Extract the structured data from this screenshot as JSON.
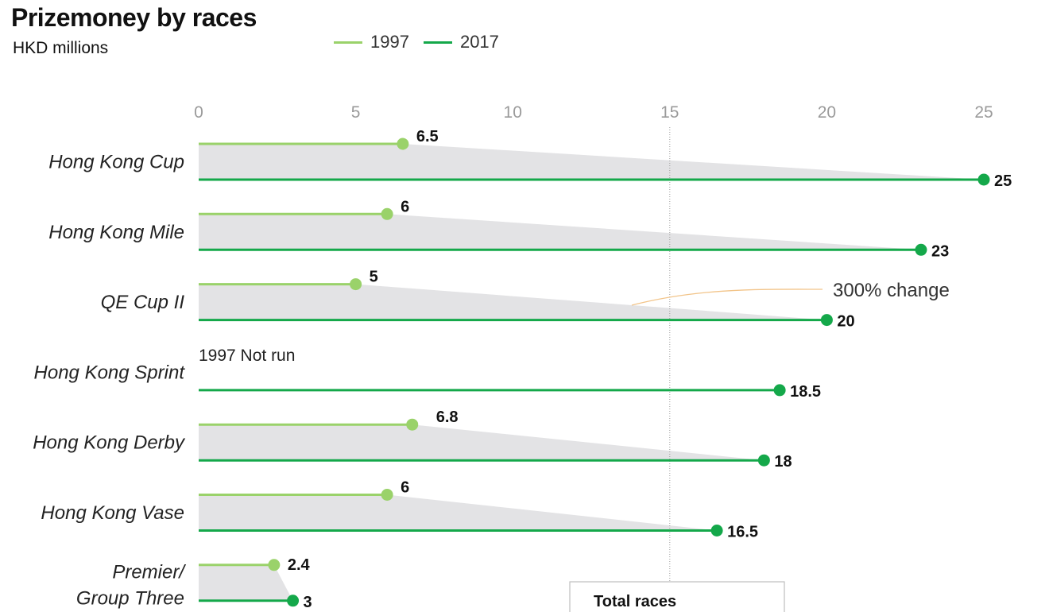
{
  "header": {
    "title": "Prizemoney by races",
    "subtitle": "HKD millions"
  },
  "legend": [
    {
      "label": "1997",
      "color": "#9ad26a"
    },
    {
      "label": "2017",
      "color": "#14a84a"
    }
  ],
  "chart_data": {
    "type": "dumbbell",
    "title": "Prizemoney by races",
    "subtitle": "HKD millions",
    "xlim": [
      0,
      25
    ],
    "x_ticks": [
      0,
      5,
      10,
      15,
      20,
      25
    ],
    "grid": "vertical dotted line at 15",
    "legend_position": "top",
    "categories": [
      "Hong Kong Cup",
      "Hong Kong Mile",
      "QE Cup II",
      "Hong Kong Sprint",
      "Hong Kong Derby",
      "Hong Kong Vase",
      "Premier/ Group Three"
    ],
    "series": [
      {
        "name": "1997",
        "color": "#9ad26a",
        "values": [
          6.5,
          6,
          5,
          null,
          6.8,
          6,
          2.4
        ],
        "labels": [
          "6.5",
          "6",
          "5",
          "",
          "6.8",
          "6",
          "2.4"
        ]
      },
      {
        "name": "2017",
        "color": "#14a84a",
        "values": [
          25,
          23,
          20,
          18.5,
          18,
          16.5,
          3
        ],
        "labels": [
          "25",
          "23",
          "20",
          "18.5",
          "18",
          "16.5",
          "3"
        ]
      }
    ],
    "category_lines": [
      [
        "Hong Kong Cup"
      ],
      [
        "Hong Kong Mile"
      ],
      [
        "QE Cup II"
      ],
      [
        "Hong Kong Sprint"
      ],
      [
        "Hong Kong Derby"
      ],
      [
        "Hong Kong Vase"
      ],
      [
        "Premier/",
        "Group Three"
      ]
    ],
    "notes": {
      "not_run": "1997 Not run"
    },
    "annotation": "300% change",
    "footer_box": "Total races"
  }
}
